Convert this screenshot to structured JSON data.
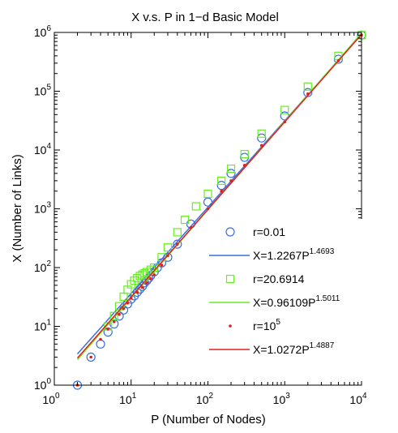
{
  "chart_data": {
    "type": "scatter",
    "title": "X v.s. P in 1−d Basic Model",
    "xlabel": "P (Number of Nodes)",
    "ylabel": "X (Number of Links)",
    "xscale": "log",
    "yscale": "log",
    "xlim": [
      1,
      10000
    ],
    "ylim": [
      1,
      1000000
    ],
    "grid": false,
    "legend_position": "lower-right",
    "x_ticks": [
      {
        "base": "10",
        "exp": "0"
      },
      {
        "base": "10",
        "exp": "1"
      },
      {
        "base": "10",
        "exp": "2"
      },
      {
        "base": "10",
        "exp": "3"
      },
      {
        "base": "10",
        "exp": "4"
      }
    ],
    "y_ticks": [
      {
        "base": "10",
        "exp": "0"
      },
      {
        "base": "10",
        "exp": "1"
      },
      {
        "base": "10",
        "exp": "2"
      },
      {
        "base": "10",
        "exp": "3"
      },
      {
        "base": "10",
        "exp": "4"
      },
      {
        "base": "10",
        "exp": "5"
      },
      {
        "base": "10",
        "exp": "6"
      }
    ],
    "series": [
      {
        "key": "r001",
        "legend": {
          "text": "r=0.01",
          "sup": ""
        },
        "marker": "circle",
        "color": "#3b6fe0",
        "x": [
          2,
          3,
          4,
          5,
          6,
          7,
          8,
          9,
          10,
          11,
          12,
          13,
          14,
          15,
          16,
          17,
          18,
          20,
          22,
          25,
          30,
          40,
          60,
          100,
          150,
          200,
          300,
          500,
          1000,
          2000,
          5000,
          10000
        ],
        "y": [
          1,
          3,
          5,
          8,
          11,
          15,
          19,
          24,
          29,
          33,
          38,
          43,
          48,
          55,
          60,
          66,
          73,
          85,
          100,
          120,
          150,
          250,
          550,
          1300,
          2500,
          4000,
          7500,
          16000,
          38000,
          95000,
          350000,
          900000
        ]
      },
      {
        "key": "fit001",
        "legend": {
          "text": "X=1.2267P",
          "sup": "1.4693"
        },
        "line": true,
        "color": "#3b6fe0",
        "coef": 1.2267,
        "exponent": 1.4693,
        "x": [
          2,
          10000
        ]
      },
      {
        "key": "r206914",
        "legend": {
          "text": "r=20.6914",
          "sup": ""
        },
        "marker": "square",
        "color": "#66ee22",
        "x": [
          5,
          6,
          7,
          8,
          9,
          10,
          11,
          12,
          13,
          14,
          15,
          16,
          18,
          20,
          25,
          30,
          40,
          50,
          70,
          100,
          150,
          200,
          300,
          500,
          1000,
          2000,
          5000,
          10000
        ],
        "y": [
          10,
          15,
          22,
          32,
          42,
          52,
          60,
          66,
          72,
          76,
          80,
          84,
          92,
          100,
          150,
          220,
          400,
          650,
          1100,
          1800,
          3000,
          4800,
          8500,
          19000,
          48000,
          120000,
          400000,
          900000
        ]
      },
      {
        "key": "fit206914",
        "legend": {
          "text": "X=0.96109P",
          "sup": "1.5011"
        },
        "line": true,
        "color": "#66ee22",
        "coef": 0.96109,
        "exponent": 1.5011,
        "x": [
          2,
          10000
        ]
      },
      {
        "key": "r1e5",
        "legend": {
          "text": "r=10",
          "sup": "5"
        },
        "marker": "dot",
        "color": "#e02020",
        "x": [
          2,
          3,
          4,
          5,
          6,
          7,
          8,
          9,
          10,
          12,
          14,
          16,
          18,
          20,
          25,
          30,
          40,
          60,
          100,
          150,
          200,
          300,
          500,
          1000,
          2000,
          5000,
          10000
        ],
        "y": [
          1,
          3,
          6,
          9,
          12,
          16,
          20,
          25,
          30,
          38,
          46,
          55,
          65,
          75,
          110,
          160,
          250,
          480,
          1000,
          2000,
          3000,
          5500,
          12000,
          30000,
          90000,
          330000,
          900000
        ]
      },
      {
        "key": "fit1e5",
        "legend": {
          "text": "X=1.0272P",
          "sup": "1.4887"
        },
        "line": true,
        "color": "#e02020",
        "coef": 1.0272,
        "exponent": 1.4887,
        "x": [
          2,
          10000
        ]
      }
    ]
  }
}
